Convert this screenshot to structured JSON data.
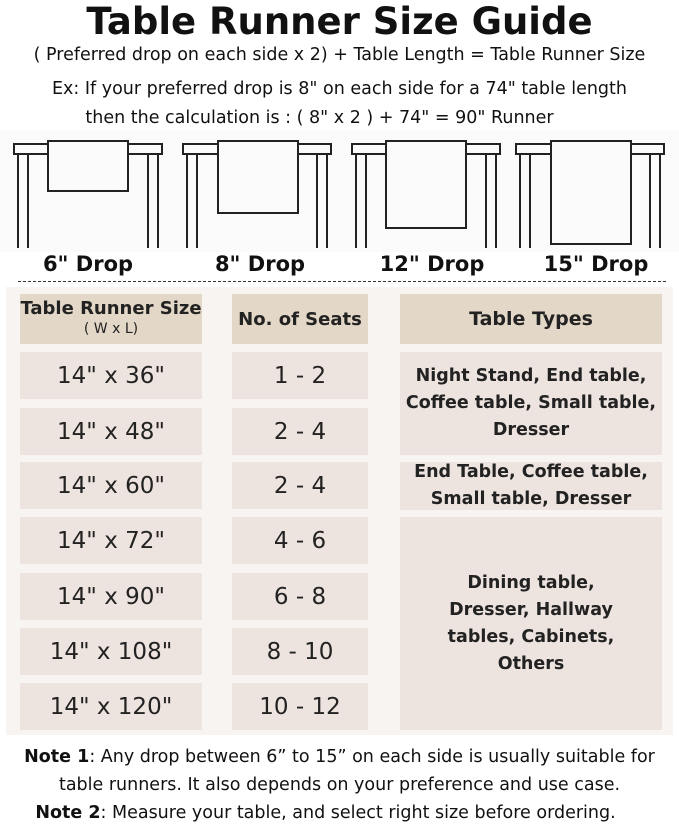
{
  "title": "Table Runner Size Guide",
  "formula": "( Preferred drop on each side x 2) + Table Length = Table Runner Size",
  "example_line1": "Ex: If your preferred drop is 8\" on each side for a 74\" table length",
  "example_line2": "then the calculation is : ( 8\" x 2 ) + 74\" = 90\" Runner",
  "drops": [
    "6\" Drop",
    "8\" Drop",
    "12\" Drop",
    "15\" Drop"
  ],
  "table": {
    "headers": {
      "size": "Table Runner Size",
      "size_sub": "( W x L)",
      "seats": "No. of Seats",
      "types": "Table Types"
    },
    "rows": [
      {
        "size": "14\" x 36\"",
        "seats": "1 - 2"
      },
      {
        "size": "14\" x 48\"",
        "seats": "2 - 4"
      },
      {
        "size": "14\" x 60\"",
        "seats": "2 - 4"
      },
      {
        "size": "14\" x 72\"",
        "seats": "4 - 6"
      },
      {
        "size": "14\" x 90\"",
        "seats": "6 - 8"
      },
      {
        "size": "14\" x 108\"",
        "seats": "8 - 10"
      },
      {
        "size": "14\" x 120\"",
        "seats": "10 - 12"
      }
    ],
    "types": [
      "Night Stand, End table, Coffee table, Small table, Dresser",
      "End Table, Coffee table, Small table, Dresser",
      "Dining table, Dresser, Hallway tables, Cabinets, Others"
    ]
  },
  "notes": {
    "note1_label": "Note 1",
    "note1_text": ": Any drop between 6” to 15” on each side is usually suitable for",
    "note1_line2": "table runners. It also depends on your preference and use case.",
    "note2_label": "Note 2",
    "note2_text": ": Measure your table, and select right size before ordering."
  },
  "colors": {
    "header": "#e3d7c7",
    "cell": "#eee4df",
    "panel": "#f8f4f1"
  }
}
